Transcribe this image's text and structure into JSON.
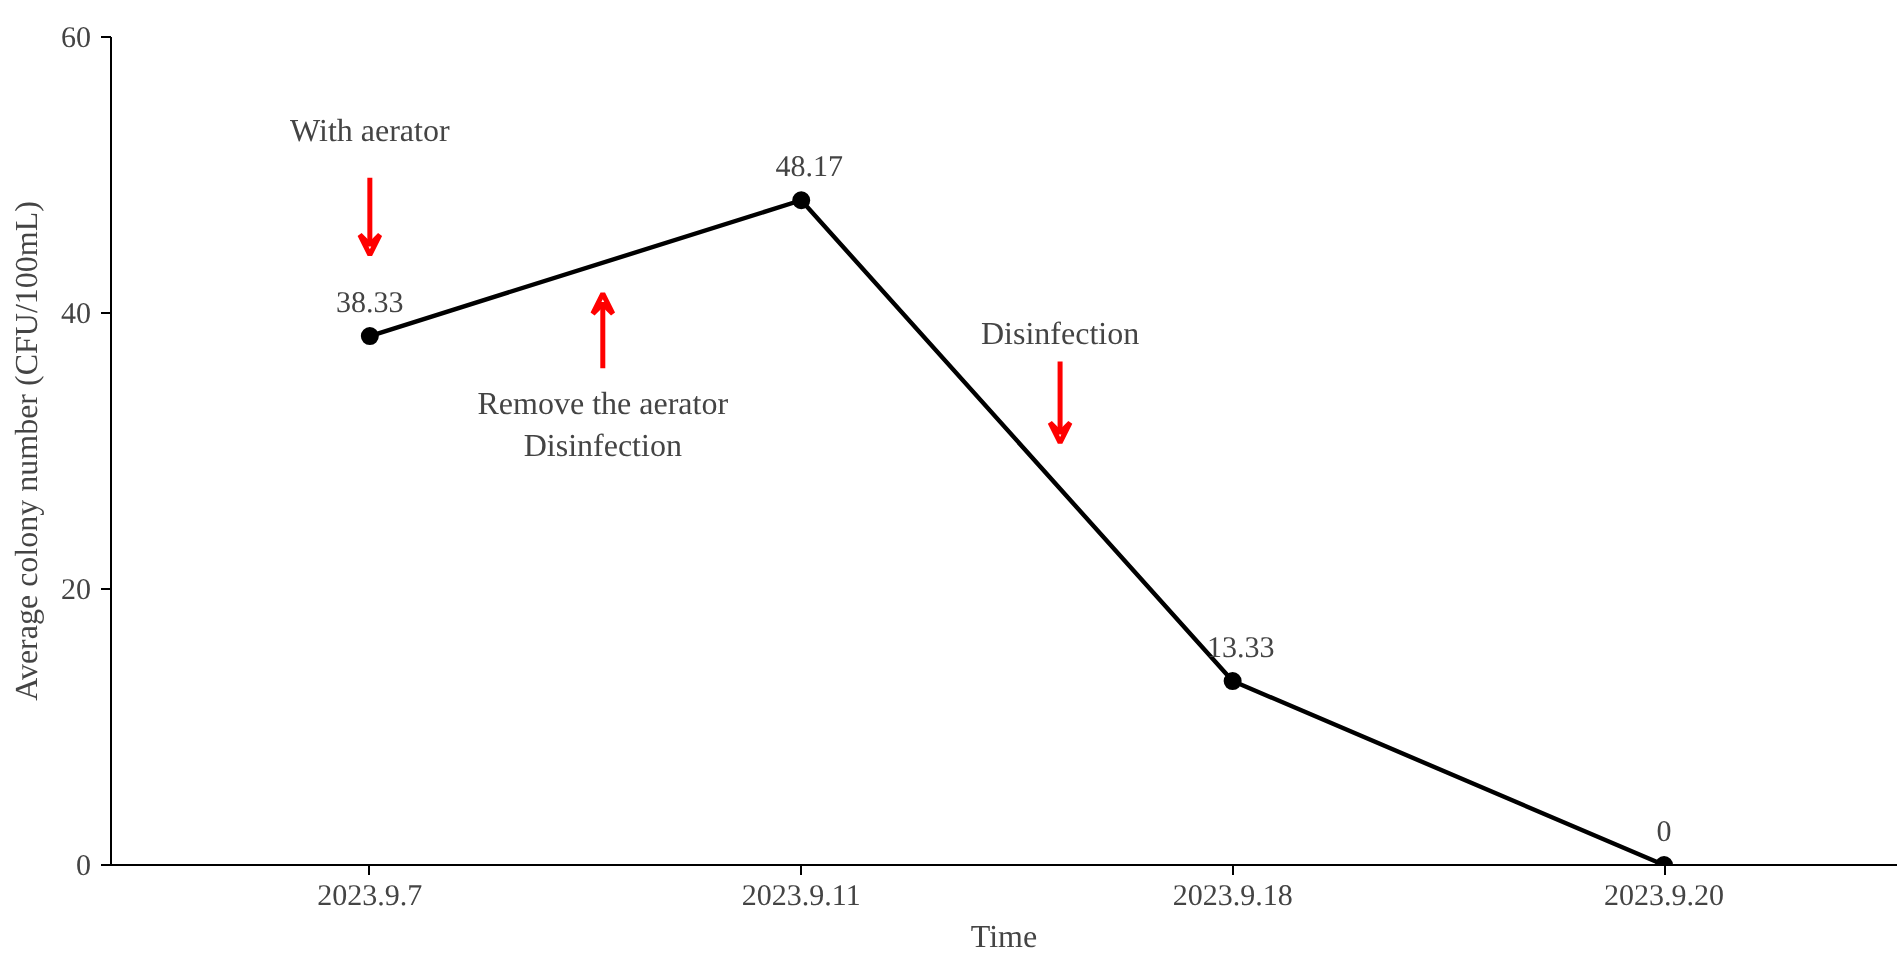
{
  "chart_data": {
    "type": "line",
    "xlabel": "Time",
    "ylabel": "Average colony number (CFU/100mL)",
    "categories": [
      "2023.9.7",
      "2023.9.11",
      "2023.9.18",
      "2023.9.20"
    ],
    "series": [
      {
        "color": "#000000",
        "values": [
          38.33,
          48.17,
          13.33,
          0
        ]
      }
    ],
    "ylim": [
      0,
      60
    ],
    "yticks": [
      0,
      20,
      40,
      60
    ],
    "data_labels": true,
    "grid": false,
    "marker": "circle",
    "line_style": "solid",
    "annotations": [
      "With aerator",
      "Remove the aerator\nDisinfection",
      "Disinfection"
    ]
  }
}
